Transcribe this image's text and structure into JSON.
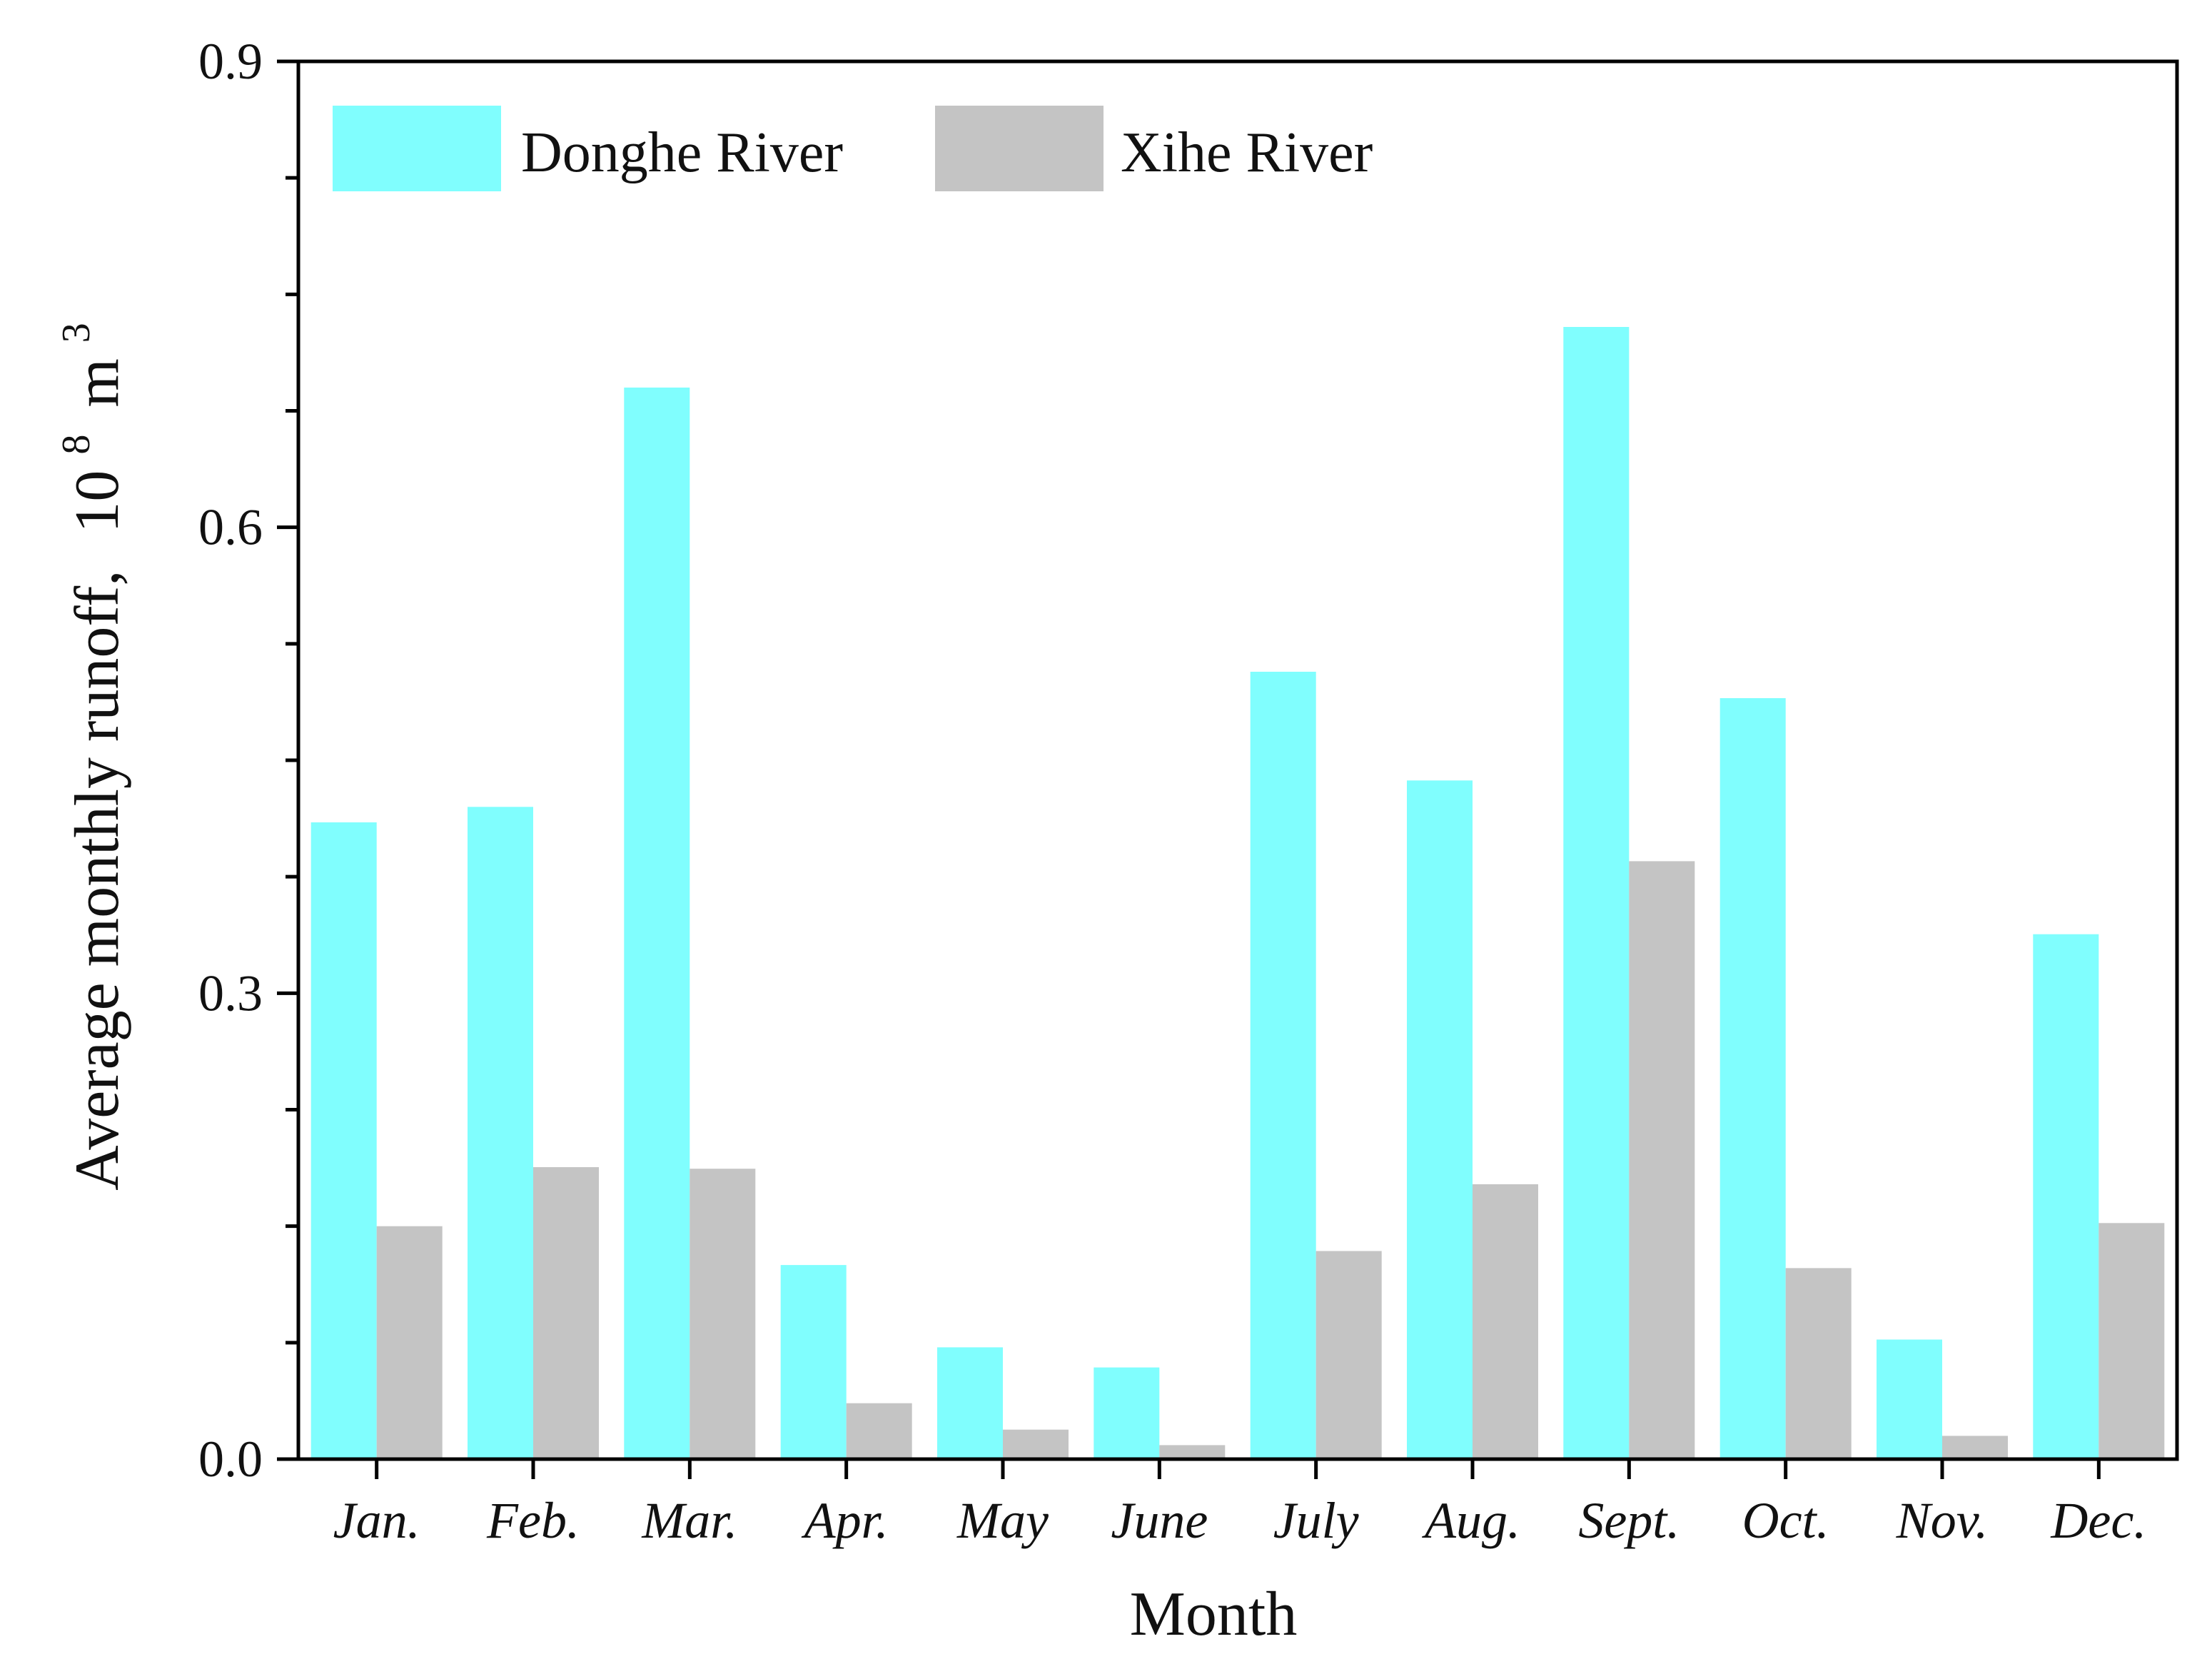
{
  "chart_data": {
    "type": "bar",
    "title": "",
    "xlabel": "Month",
    "ylabel": "Average monthly runoff,",
    "ylabel_unit_base": "10",
    "ylabel_unit_exp": "8",
    "ylabel_unit_m": "m",
    "ylabel_unit_m_exp": "3",
    "ylim": [
      0,
      0.9
    ],
    "yticks": [
      "0.0",
      "0.3",
      "0.6",
      "0.9"
    ],
    "grid": false,
    "legend_position": "top-left",
    "categories": [
      "Jan.",
      "Feb.",
      "Mar.",
      "Apr.",
      "May",
      "June",
      "July",
      "Aug.",
      "Sept.",
      "Oct.",
      "Nov.",
      "Dec."
    ],
    "series": [
      {
        "name": "Donghe River",
        "color": "#80fefe",
        "values": [
          0.41,
          0.42,
          0.69,
          0.125,
          0.072,
          0.059,
          0.507,
          0.437,
          0.729,
          0.49,
          0.077,
          0.338
        ]
      },
      {
        "name": "Xihe River",
        "color": "#c4c4c4",
        "values": [
          0.15,
          0.188,
          0.187,
          0.036,
          0.019,
          0.009,
          0.134,
          0.177,
          0.385,
          0.123,
          0.015,
          0.152
        ]
      }
    ]
  }
}
